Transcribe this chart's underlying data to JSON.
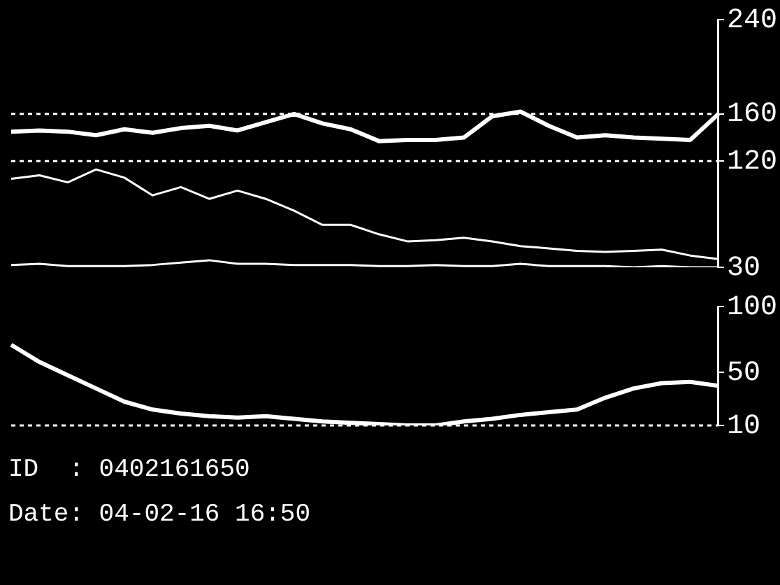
{
  "chart_data": [
    {
      "type": "line",
      "categories": [
        null,
        null,
        null,
        null,
        null,
        null,
        null,
        null,
        null,
        null,
        null,
        null,
        null,
        null,
        null,
        null,
        null,
        null,
        null,
        null,
        null,
        null,
        null,
        null,
        null,
        null
      ],
      "series": [
        {
          "color": "#ffffff",
          "values": [
            145,
            146,
            145,
            142,
            147,
            144,
            148,
            150,
            146,
            153,
            160,
            152,
            147,
            137,
            138,
            138,
            140,
            158,
            162,
            150,
            140,
            142,
            140,
            139,
            138,
            160
          ]
        },
        {
          "color": "#ffffff",
          "values": [
            105,
            108,
            102,
            113,
            106,
            91,
            98,
            88,
            95,
            88,
            78,
            66,
            66,
            58,
            52,
            53,
            55,
            52,
            48,
            46,
            44,
            43,
            44,
            45,
            40,
            37
          ]
        },
        {
          "color": "#ffffff",
          "values": [
            32,
            33,
            31,
            31,
            31,
            32,
            34,
            36,
            33,
            33,
            32,
            32,
            32,
            31,
            31,
            32,
            31,
            31,
            33,
            31,
            31,
            31,
            30,
            31,
            30,
            30
          ]
        }
      ],
      "ylim": [
        30,
        240
      ],
      "yticks": [
        30,
        120,
        160,
        240
      ],
      "tick_labels": "y",
      "marker": "none",
      "line_style": "solid",
      "ref_lines": [
        {
          "axis": "y",
          "value": 160,
          "color": "#ffffff",
          "line_style": "dotted"
        },
        {
          "axis": "y",
          "value": 120,
          "color": "#ffffff",
          "line_style": "dotted"
        }
      ]
    },
    {
      "type": "line",
      "categories": [
        null,
        null,
        null,
        null,
        null,
        null,
        null,
        null,
        null,
        null,
        null,
        null,
        null,
        null,
        null,
        null,
        null,
        null,
        null,
        null,
        null,
        null,
        null,
        null,
        null,
        null
      ],
      "series": [
        {
          "color": "#ffffff",
          "values": [
            71,
            58,
            48,
            38,
            28,
            22,
            19,
            17,
            16,
            17,
            15,
            13,
            12,
            11,
            10,
            10,
            13,
            15,
            18,
            20,
            22,
            31,
            38,
            42,
            43,
            40
          ]
        }
      ],
      "ylim": [
        10,
        100
      ],
      "yticks": [
        10,
        50,
        100
      ],
      "tick_labels": "y",
      "marker": "none",
      "line_style": "solid",
      "ref_lines": [
        {
          "axis": "y",
          "value": 10,
          "color": "#ffffff",
          "line_style": "dotted"
        }
      ],
      "annotations": [
        "ID  : 0402161650",
        "Date: 04-02-16 16:50"
      ]
    }
  ]
}
